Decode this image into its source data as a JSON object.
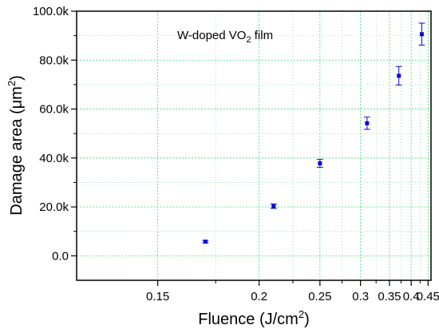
{
  "chart_data": {
    "type": "scatter",
    "title": "",
    "annotation": {
      "main": "W-doped VO",
      "sub": "2",
      "tail": " film"
    },
    "xlabel": {
      "main": "Fluence (J/cm",
      "sup": "2",
      "tail": ")"
    },
    "ylabel": {
      "main": "Damage area (μm",
      "sup": "2",
      "tail": ")"
    },
    "x_scale": "reciprocal",
    "xlim": [
      0.125,
      0.46
    ],
    "ylim": [
      -10000,
      100000
    ],
    "x_ticks": [
      0.15,
      0.2,
      0.25,
      0.3,
      0.35,
      0.4,
      0.45
    ],
    "x_tick_labels": [
      "0.15",
      "0.2",
      "0.25",
      "0.3",
      "0.35",
      "0.4",
      "0.45"
    ],
    "y_ticks": [
      0,
      20000,
      40000,
      60000,
      80000,
      100000
    ],
    "y_tick_labels": [
      "0.0",
      "20.0k",
      "40.0k",
      "60.0k",
      "80.0k",
      "100.0k"
    ],
    "grid": true,
    "colors": {
      "marker": "#0a0ad6",
      "grid": "#3fdc72",
      "axis": "#000000"
    },
    "series": [
      {
        "x": [
          0.17,
          0.21,
          0.25,
          0.31,
          0.37,
          0.43
        ],
        "y": [
          5800,
          20300,
          37800,
          54200,
          73600,
          90600
        ],
        "error": [
          500,
          900,
          1600,
          2500,
          3800,
          4500
        ]
      }
    ]
  }
}
